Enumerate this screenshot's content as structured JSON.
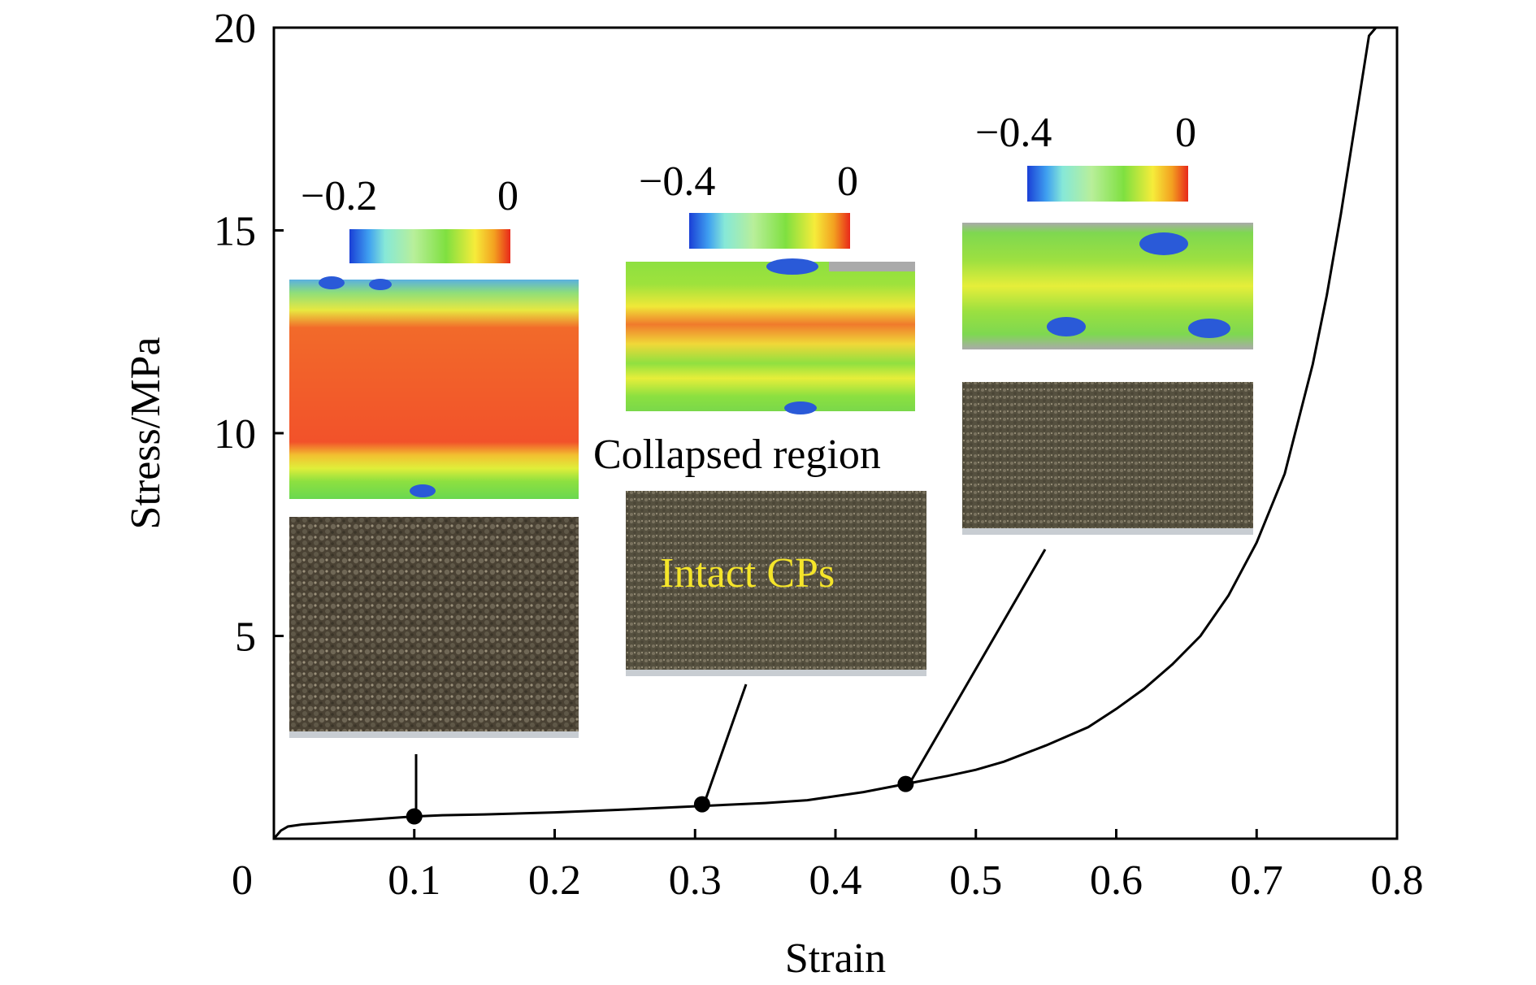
{
  "chart_data": {
    "type": "line",
    "xlabel": "Strain",
    "ylabel": "Stress/MPa",
    "xlim": [
      0,
      0.8
    ],
    "ylim": [
      0,
      20
    ],
    "x_ticks": [
      "0",
      "0.1",
      "0.2",
      "0.3",
      "0.4",
      "0.5",
      "0.6",
      "0.7",
      "0.8"
    ],
    "y_ticks": [
      "5",
      "10",
      "15",
      "20"
    ],
    "grid": false,
    "series": [
      {
        "x": [
          0.0,
          0.005,
          0.01,
          0.02,
          0.04,
          0.06,
          0.08,
          0.1,
          0.12,
          0.15,
          0.2,
          0.25,
          0.3,
          0.35,
          0.38,
          0.4,
          0.42,
          0.45,
          0.48,
          0.5,
          0.52,
          0.55,
          0.56,
          0.58,
          0.6,
          0.62,
          0.64,
          0.66,
          0.68,
          0.7,
          0.72,
          0.74,
          0.75,
          0.76,
          0.77,
          0.78,
          0.785
        ],
        "y": [
          0.0,
          0.2,
          0.3,
          0.35,
          0.4,
          0.45,
          0.5,
          0.55,
          0.58,
          0.6,
          0.65,
          0.72,
          0.8,
          0.88,
          0.95,
          1.05,
          1.15,
          1.35,
          1.55,
          1.7,
          1.9,
          2.3,
          2.45,
          2.75,
          3.2,
          3.7,
          4.3,
          5.0,
          6.0,
          7.3,
          9.0,
          11.7,
          13.4,
          15.4,
          17.6,
          19.8,
          20.5
        ]
      }
    ],
    "points": [
      {
        "x": 0.1,
        "y": 0.55
      },
      {
        "x": 0.305,
        "y": 0.85
      },
      {
        "x": 0.45,
        "y": 1.35
      }
    ],
    "annotations": [
      "Collapsed region",
      "Intact CPs"
    ],
    "colorbars": [
      {
        "min_label": "−0.2",
        "max_label": "0"
      },
      {
        "min_label": "−0.4",
        "max_label": "0"
      },
      {
        "min_label": "−0.4",
        "max_label": "0"
      }
    ],
    "colors": {
      "line": "#000000",
      "annotation_highlight": "#f5e52a"
    }
  }
}
